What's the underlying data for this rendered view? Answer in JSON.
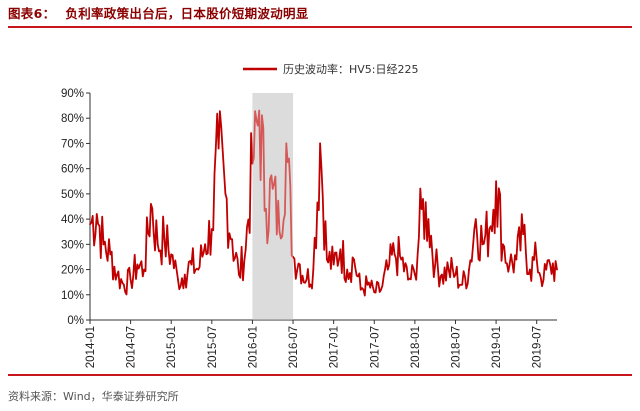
{
  "figure": {
    "number": "图表6：",
    "title": "负利率政策出台后，日本股价短期波动明显",
    "source": "资料来源：Wind，华泰证券研究所"
  },
  "colors": {
    "series": "#c00000",
    "highlight": "#c9c9c9",
    "rule": "#c8161d",
    "title": "#8b0000"
  },
  "chart_data": {
    "type": "line",
    "title": "",
    "xlabel": "",
    "ylabel": "",
    "ylim": [
      0,
      90
    ],
    "y_ticks": [
      "0%",
      "10%",
      "20%",
      "30%",
      "40%",
      "50%",
      "60%",
      "70%",
      "80%",
      "90%"
    ],
    "x_ticks": [
      "2014-01",
      "2014-07",
      "2015-01",
      "2015-07",
      "2016-01",
      "2016-07",
      "2017-01",
      "2017-07",
      "2018-01",
      "2018-07",
      "2019-01",
      "2019-07"
    ],
    "x_range": [
      "2014-01",
      "2019-10"
    ],
    "grid": false,
    "legend": "top-center",
    "highlight_band": [
      "2016-01",
      "2016-07"
    ],
    "series": [
      {
        "name": "历史波动率：HV5:日经225",
        "x": [
          "2014-01",
          "2014-02",
          "2014-03",
          "2014-04",
          "2014-05",
          "2014-06",
          "2014-07",
          "2014-08",
          "2014-09",
          "2014-10",
          "2014-11",
          "2014-12",
          "2015-01",
          "2015-02",
          "2015-03",
          "2015-04",
          "2015-05",
          "2015-06",
          "2015-07",
          "2015-08",
          "2015-09",
          "2015-10",
          "2015-11",
          "2015-12",
          "2016-01",
          "2016-02",
          "2016-03",
          "2016-04",
          "2016-05",
          "2016-06",
          "2016-07",
          "2016-08",
          "2016-09",
          "2016-10",
          "2016-11",
          "2016-12",
          "2017-01",
          "2017-02",
          "2017-03",
          "2017-04",
          "2017-05",
          "2017-06",
          "2017-07",
          "2017-08",
          "2017-09",
          "2017-10",
          "2017-11",
          "2017-12",
          "2018-01",
          "2018-02",
          "2018-03",
          "2018-04",
          "2018-05",
          "2018-06",
          "2018-07",
          "2018-08",
          "2018-09",
          "2018-10",
          "2018-11",
          "2018-12",
          "2019-01",
          "2019-02",
          "2019-03",
          "2019-04",
          "2019-05",
          "2019-06",
          "2019-07",
          "2019-08",
          "2019-09",
          "2019-10"
        ],
        "values": [
          38,
          42,
          30,
          26,
          18,
          14,
          16,
          22,
          20,
          46,
          30,
          32,
          26,
          16,
          18,
          22,
          20,
          30,
          36,
          68,
          50,
          32,
          18,
          28,
          62,
          83,
          44,
          52,
          35,
          70,
          25,
          22,
          16,
          20,
          70,
          24,
          22,
          28,
          20,
          24,
          12,
          14,
          11,
          12,
          20,
          26,
          24,
          16,
          18,
          44,
          40,
          22,
          18,
          20,
          18,
          14,
          20,
          40,
          30,
          36,
          55,
          30,
          22,
          24,
          34,
          20,
          24,
          16,
          22,
          20
        ]
      }
    ]
  }
}
